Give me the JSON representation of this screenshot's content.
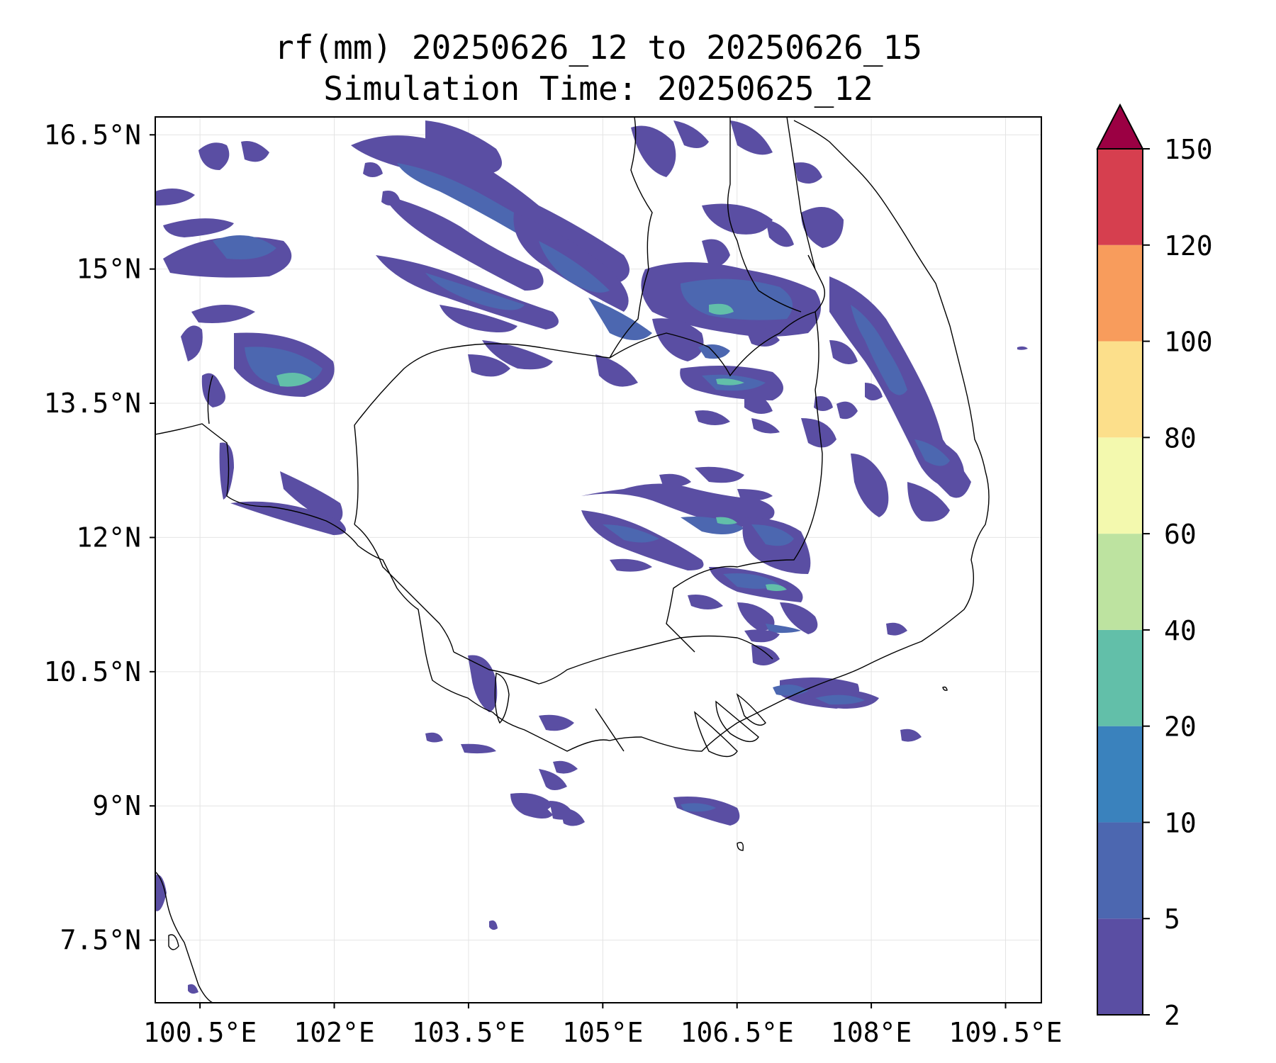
{
  "title": {
    "line1": "rf(mm) 20250626_12 to 20250626_15",
    "line2": "Simulation Time: 20250625_12"
  },
  "map": {
    "lon_range": [
      100.0,
      109.9
    ],
    "lat_range": [
      6.8,
      16.7
    ],
    "lon_ticks": [
      "100.5°E",
      "102°E",
      "103.5°E",
      "105°E",
      "106.5°E",
      "108°E",
      "109.5°E"
    ],
    "lon_tick_values": [
      100.5,
      102,
      103.5,
      105,
      106.5,
      108,
      109.5
    ],
    "lat_ticks": [
      "16.5°N",
      "15°N",
      "13.5°N",
      "12°N",
      "10.5°N",
      "9°N",
      "7.5°N"
    ],
    "lat_tick_values": [
      16.5,
      15,
      13.5,
      12,
      10.5,
      9,
      7.5
    ],
    "gridlines": true
  },
  "colorbar": {
    "levels": [
      "2",
      "5",
      "10",
      "20",
      "40",
      "60",
      "80",
      "100",
      "120",
      "150"
    ],
    "colors": [
      "#5a4ea3",
      "#4c67b0",
      "#3a82bd",
      "#62bfa9",
      "#bde3a0",
      "#f3f9ae",
      "#fcdf8b",
      "#f89c5c",
      "#d63f4f",
      "#9b0043"
    ],
    "extend": "max"
  }
}
